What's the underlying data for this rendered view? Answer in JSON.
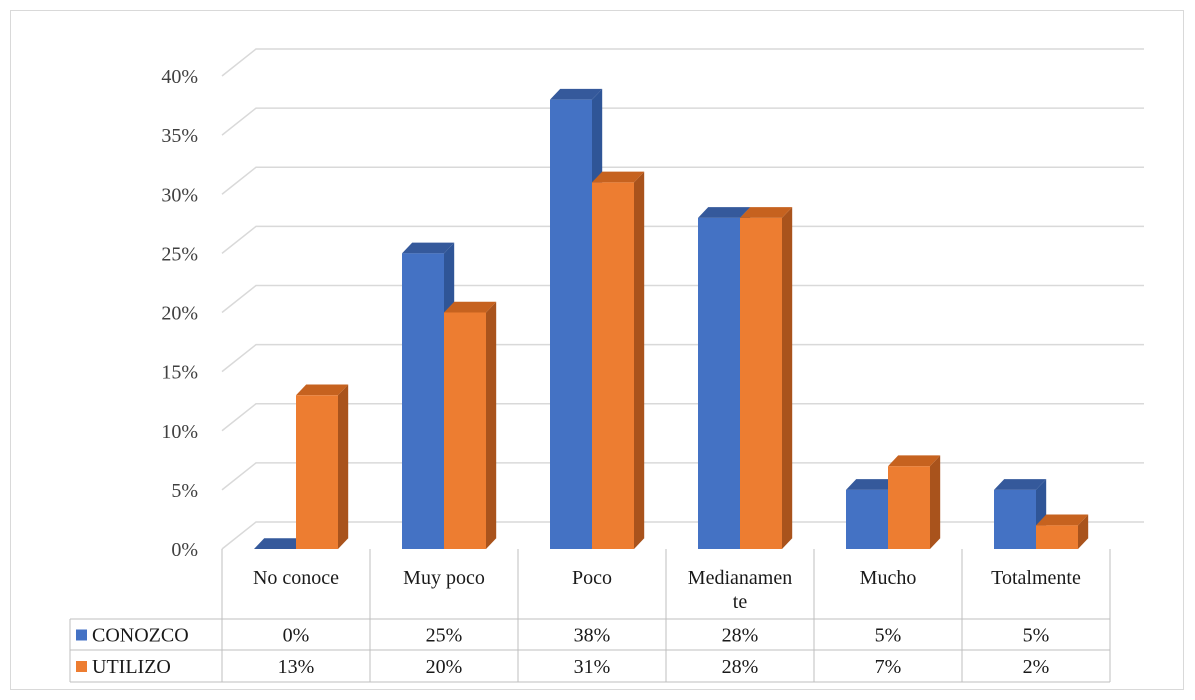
{
  "chart_data": {
    "type": "bar",
    "categories": [
      "No conoce",
      "Muy poco",
      "Poco",
      "Medianamente",
      "Mucho",
      "Totalmente"
    ],
    "series": [
      {
        "name": "CONOZCO",
        "values": [
          0,
          25,
          38,
          28,
          5,
          5
        ],
        "labels": [
          "0%",
          "25%",
          "38%",
          "28%",
          "5%",
          "5%"
        ],
        "color": "#4472c4",
        "side": "#2f5597",
        "top": "#35599b"
      },
      {
        "name": "UTILIZO",
        "values": [
          13,
          20,
          31,
          28,
          7,
          2
        ],
        "labels": [
          "13%",
          "20%",
          "31%",
          "28%",
          "7%",
          "2%"
        ],
        "color": "#ed7d31",
        "side": "#a9531c",
        "top": "#c6621f"
      }
    ],
    "ylim": [
      0,
      40
    ],
    "yticks": [
      "0%",
      "5%",
      "10%",
      "15%",
      "20%",
      "25%",
      "30%",
      "35%",
      "40%"
    ],
    "grid": true,
    "legend": "data-table",
    "chart_style": "3d-clustered-column"
  }
}
